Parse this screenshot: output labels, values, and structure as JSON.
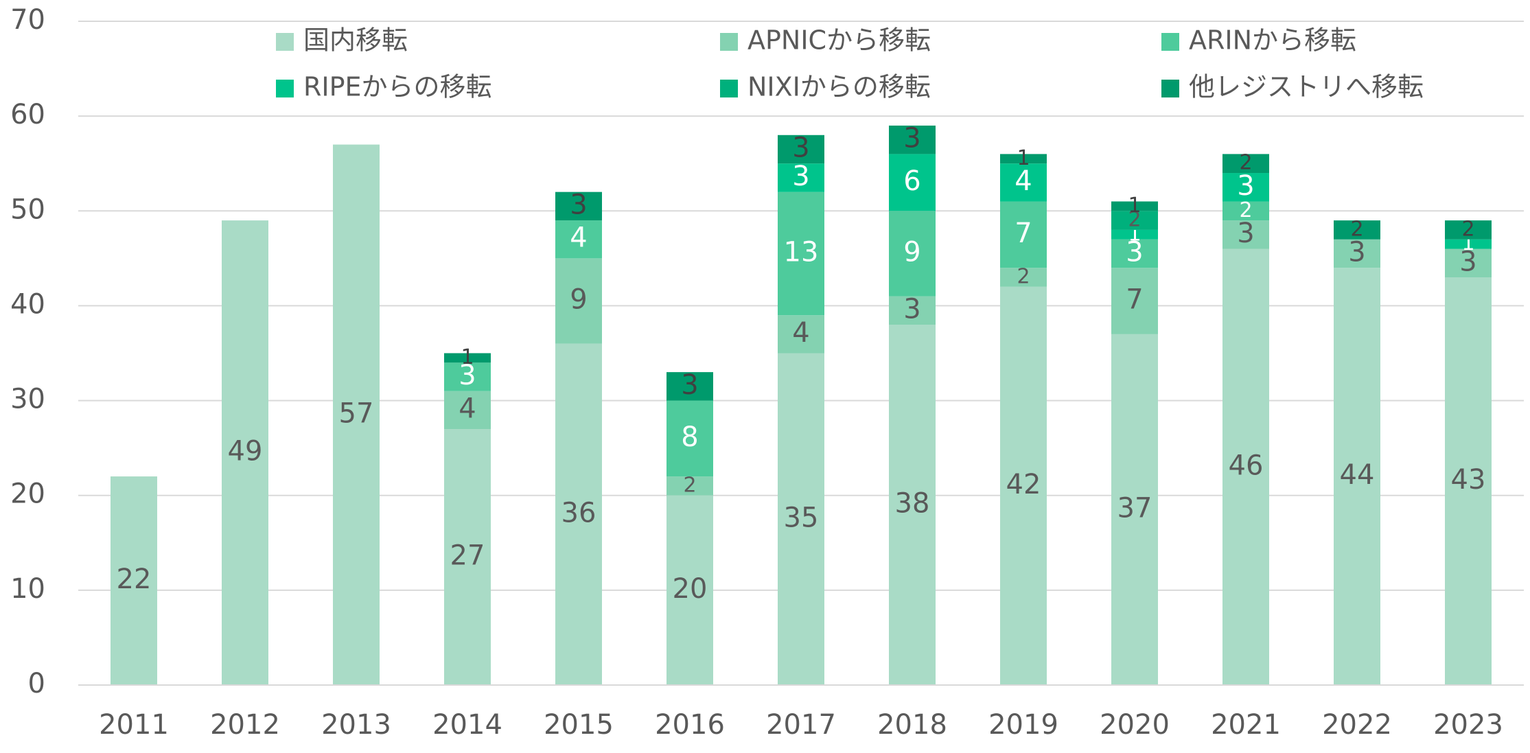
{
  "chart_data": {
    "type": "stacked_bar",
    "categories": [
      "2011",
      "2012",
      "2013",
      "2014",
      "2015",
      "2016",
      "2017",
      "2018",
      "2019",
      "2020",
      "2021",
      "2022",
      "2023"
    ],
    "series": [
      {
        "name": "国内移転",
        "color": "#a9dbc6",
        "values": [
          22,
          49,
          57,
          27,
          36,
          20,
          35,
          38,
          42,
          37,
          46,
          44,
          43
        ]
      },
      {
        "name": "APNICから移転",
        "color": "#84d2b1",
        "values": [
          null,
          null,
          null,
          4,
          9,
          2,
          4,
          3,
          2,
          7,
          3,
          3,
          3
        ]
      },
      {
        "name": "ARINから移転",
        "color": "#4ecb9c",
        "values": [
          null,
          null,
          null,
          3,
          4,
          8,
          13,
          9,
          7,
          3,
          2,
          null,
          null
        ]
      },
      {
        "name": "RIPEからの移転",
        "color": "#00c48c",
        "values": [
          null,
          null,
          null,
          null,
          null,
          null,
          3,
          6,
          4,
          1,
          3,
          null,
          1
        ]
      },
      {
        "name": "NIXIからの移転",
        "color": "#00b07c",
        "values": [
          null,
          null,
          null,
          null,
          null,
          null,
          null,
          null,
          null,
          2,
          null,
          null,
          null
        ]
      },
      {
        "name": "他レジストリへ移転",
        "color": "#009a6c",
        "values": [
          null,
          null,
          null,
          1,
          3,
          3,
          3,
          3,
          1,
          1,
          2,
          2,
          2
        ]
      }
    ],
    "ylim": [
      0,
      70
    ],
    "yticks": [
      0,
      10,
      20,
      30,
      40,
      50,
      60,
      70
    ],
    "grid": true
  }
}
